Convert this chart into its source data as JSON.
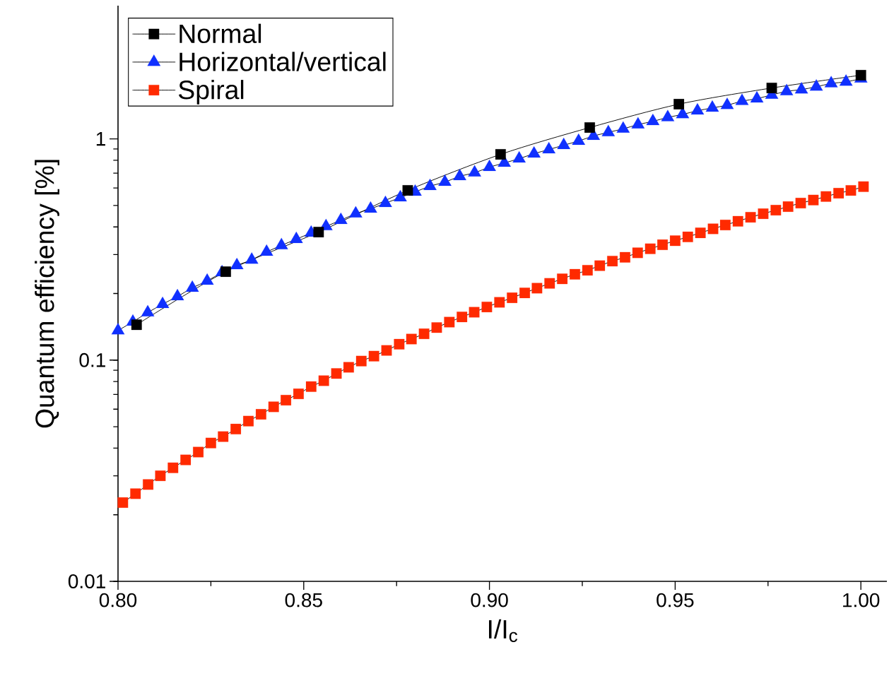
{
  "chart_data": {
    "type": "line",
    "xlabel": "I/I$_{c}$",
    "ylabel": "Quantum efficiency [%]",
    "xlim": [
      0.8,
      1.007
    ],
    "ylim": [
      0.01,
      4
    ],
    "log": "y",
    "xticks": [
      {
        "value": 0.8,
        "label": "0.80"
      },
      {
        "value": 0.85,
        "label": "0.85"
      },
      {
        "value": 0.9,
        "label": "0.90"
      },
      {
        "value": 0.95,
        "label": "0.95"
      },
      {
        "value": 1.0,
        "label": "1.00"
      }
    ],
    "yticks": [
      0.01,
      0.1,
      1
    ],
    "legend": "top left",
    "grid": false,
    "line_style": "solid",
    "series": [
      {
        "name": "Normal",
        "color": "#000000",
        "marker": "square",
        "x": [
          0.805,
          0.829,
          0.854,
          0.878,
          0.903,
          0.927,
          0.951,
          0.976,
          1.0
        ],
        "values": [
          0.1445,
          0.251,
          0.379,
          0.585,
          0.851,
          1.125,
          1.435,
          1.698,
          1.94
        ]
      },
      {
        "name": "Horizontal/vertical",
        "color": "#1030ff",
        "marker": "triangle",
        "x": [
          0.8,
          0.804,
          0.808,
          0.812,
          0.816,
          0.82,
          0.824,
          0.828,
          0.832,
          0.836,
          0.84,
          0.844,
          0.848,
          0.852,
          0.856,
          0.86,
          0.864,
          0.868,
          0.872,
          0.876,
          0.88,
          0.884,
          0.888,
          0.892,
          0.896,
          0.9,
          0.904,
          0.908,
          0.912,
          0.916,
          0.92,
          0.924,
          0.928,
          0.932,
          0.936,
          0.94,
          0.944,
          0.948,
          0.952,
          0.956,
          0.96,
          0.964,
          0.968,
          0.972,
          0.976,
          0.98,
          0.984,
          0.988,
          0.992,
          0.996,
          1.0
        ],
        "values": [
          0.136,
          0.149,
          0.164,
          0.179,
          0.194,
          0.212,
          0.228,
          0.249,
          0.268,
          0.284,
          0.308,
          0.33,
          0.352,
          0.376,
          0.402,
          0.429,
          0.459,
          0.483,
          0.512,
          0.543,
          0.576,
          0.611,
          0.638,
          0.677,
          0.703,
          0.745,
          0.778,
          0.814,
          0.857,
          0.895,
          0.936,
          0.978,
          1.03,
          1.07,
          1.11,
          1.16,
          1.2,
          1.25,
          1.29,
          1.34,
          1.38,
          1.42,
          1.48,
          1.52,
          1.58,
          1.64,
          1.67,
          1.72,
          1.78,
          1.81,
          1.87
        ]
      },
      {
        "name": "Spiral",
        "color": "#ff2a00",
        "marker": "square",
        "x": [
          0.8013,
          0.8047,
          0.8081,
          0.8114,
          0.8148,
          0.8182,
          0.8216,
          0.825,
          0.8283,
          0.8317,
          0.8351,
          0.8385,
          0.8419,
          0.8452,
          0.8486,
          0.852,
          0.8554,
          0.8588,
          0.8621,
          0.8655,
          0.8689,
          0.8723,
          0.8757,
          0.879,
          0.8824,
          0.8858,
          0.8892,
          0.8926,
          0.8959,
          0.8993,
          0.9027,
          0.9061,
          0.9095,
          0.9128,
          0.9162,
          0.9196,
          0.923,
          0.9264,
          0.9297,
          0.9331,
          0.9365,
          0.9399,
          0.9433,
          0.9466,
          0.95,
          0.9534,
          0.9568,
          0.9602,
          0.9635,
          0.9669,
          0.9703,
          0.9737,
          0.9771,
          0.9804,
          0.9838,
          0.9872,
          0.9906,
          0.994,
          0.9973,
          1.0007
        ],
        "values": [
          0.0227,
          0.0249,
          0.0274,
          0.03,
          0.0326,
          0.0354,
          0.0384,
          0.0422,
          0.0451,
          0.0488,
          0.053,
          0.0569,
          0.0615,
          0.0659,
          0.0704,
          0.0759,
          0.0807,
          0.087,
          0.0928,
          0.099,
          0.1042,
          0.1106,
          0.118,
          0.1245,
          0.1315,
          0.1403,
          0.1485,
          0.1567,
          0.1646,
          0.1738,
          0.1825,
          0.1913,
          0.2012,
          0.2114,
          0.2223,
          0.233,
          0.2443,
          0.2547,
          0.2672,
          0.2801,
          0.2915,
          0.3055,
          0.3186,
          0.3322,
          0.3465,
          0.3606,
          0.376,
          0.3921,
          0.408,
          0.4241,
          0.4422,
          0.4588,
          0.4761,
          0.494,
          0.5125,
          0.529,
          0.5488,
          0.5681,
          0.5846,
          0.6081
        ]
      }
    ]
  }
}
